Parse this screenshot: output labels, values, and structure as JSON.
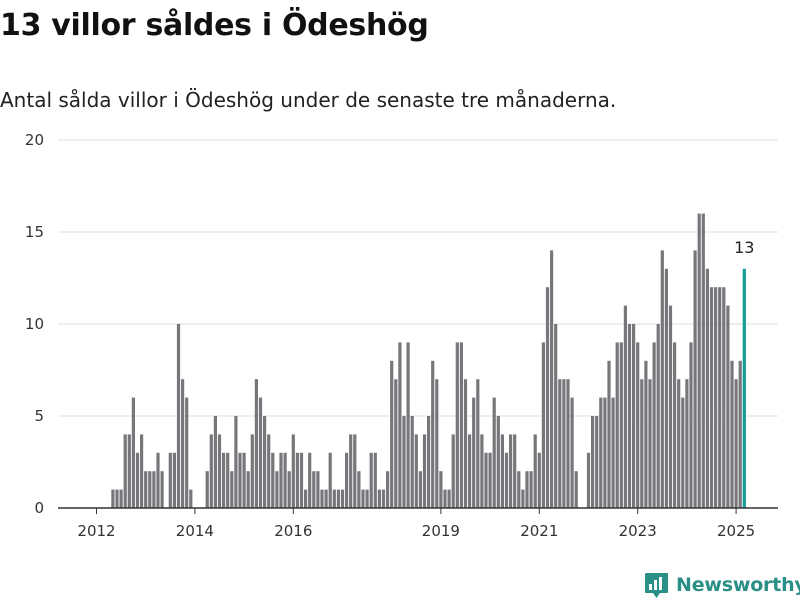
{
  "title": "13 villor såldes i Ödeshög",
  "subtitle": "Antal sålda villor i Ödeshög under de senaste tre månaderna.",
  "brand": {
    "name": "Newsworthy",
    "icon": "newsworthy-logo-icon"
  },
  "colors": {
    "bar": "#77767b",
    "highlight": "#139e95",
    "grid": "#dddddd",
    "axis": "#333333",
    "brand": "#2a8f86"
  },
  "chart_data": {
    "type": "bar",
    "title": "13 villor såldes i Ödeshög",
    "xlabel": "",
    "ylabel": "",
    "ylim": [
      0,
      20
    ],
    "yticks": [
      0,
      5,
      10,
      15,
      20
    ],
    "xticks": [
      {
        "label": "2012",
        "index": 0
      },
      {
        "label": "2014",
        "index": 24
      },
      {
        "label": "2016",
        "index": 48
      },
      {
        "label": "2019",
        "index": 84
      },
      {
        "label": "2021",
        "index": 108
      },
      {
        "label": "2023",
        "index": 132
      },
      {
        "label": "2025",
        "index": 156
      }
    ],
    "grid": true,
    "legend": "none",
    "annotation": {
      "label": "13",
      "index": 158
    },
    "values": [
      0,
      0,
      0,
      0,
      1,
      1,
      1,
      4,
      4,
      6,
      3,
      4,
      2,
      2,
      2,
      3,
      2,
      0,
      3,
      3,
      10,
      7,
      6,
      1,
      0,
      0,
      0,
      2,
      4,
      5,
      4,
      3,
      3,
      2,
      5,
      3,
      3,
      2,
      4,
      7,
      6,
      5,
      4,
      3,
      2,
      3,
      3,
      2,
      4,
      3,
      3,
      1,
      3,
      2,
      2,
      1,
      1,
      3,
      1,
      1,
      1,
      3,
      4,
      4,
      2,
      1,
      1,
      3,
      3,
      1,
      1,
      2,
      8,
      7,
      9,
      5,
      9,
      5,
      4,
      2,
      4,
      5,
      8,
      7,
      2,
      1,
      1,
      4,
      9,
      9,
      7,
      4,
      6,
      7,
      4,
      3,
      3,
      6,
      5,
      4,
      3,
      4,
      4,
      2,
      1,
      2,
      2,
      4,
      3,
      9,
      12,
      14,
      10,
      7,
      7,
      7,
      6,
      2,
      0,
      0,
      3,
      5,
      5,
      6,
      6,
      8,
      6,
      9,
      9,
      11,
      10,
      10,
      9,
      7,
      8,
      7,
      9,
      10,
      14,
      13,
      11,
      9,
      7,
      6,
      7,
      9,
      14,
      16,
      16,
      13,
      12,
      12,
      12,
      12,
      11,
      8,
      7,
      8,
      13
    ]
  }
}
